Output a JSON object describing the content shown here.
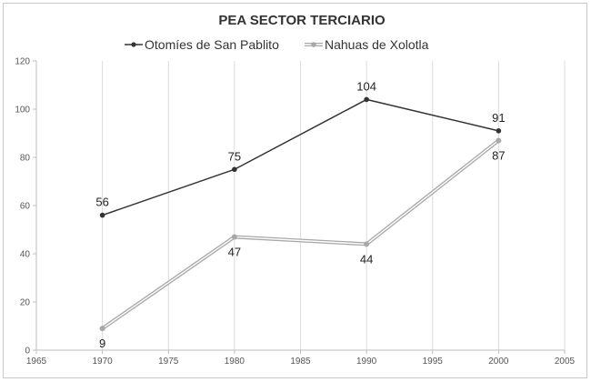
{
  "chart_data": {
    "type": "scatter",
    "title": "PEA SECTOR TERCIARIO",
    "xlabel": "",
    "ylabel": "",
    "xlim": [
      1965,
      2005
    ],
    "ylim": [
      0,
      120
    ],
    "xticks": [
      1965,
      1970,
      1975,
      1980,
      1985,
      1990,
      1995,
      2000,
      2005
    ],
    "yticks": [
      0,
      20,
      40,
      60,
      80,
      100,
      120
    ],
    "grid": "vertical",
    "legend_position": "top",
    "series": [
      {
        "name": "Otomíes de San Pablito",
        "color": "#333333",
        "style": "line-with-markers",
        "x": [
          1970,
          1980,
          1990,
          2000
        ],
        "y": [
          56,
          75,
          104,
          91
        ],
        "labels": [
          "56",
          "75",
          "104",
          "91"
        ],
        "label_position": "above"
      },
      {
        "name": "Nahuas de Xolotla",
        "color": "#a8a8a8",
        "style": "double-line-with-markers",
        "x": [
          1970,
          1980,
          1990,
          2000
        ],
        "y": [
          9,
          47,
          44,
          87
        ],
        "labels": [
          "9",
          "47",
          "44",
          "87"
        ],
        "label_position": "below"
      }
    ]
  }
}
